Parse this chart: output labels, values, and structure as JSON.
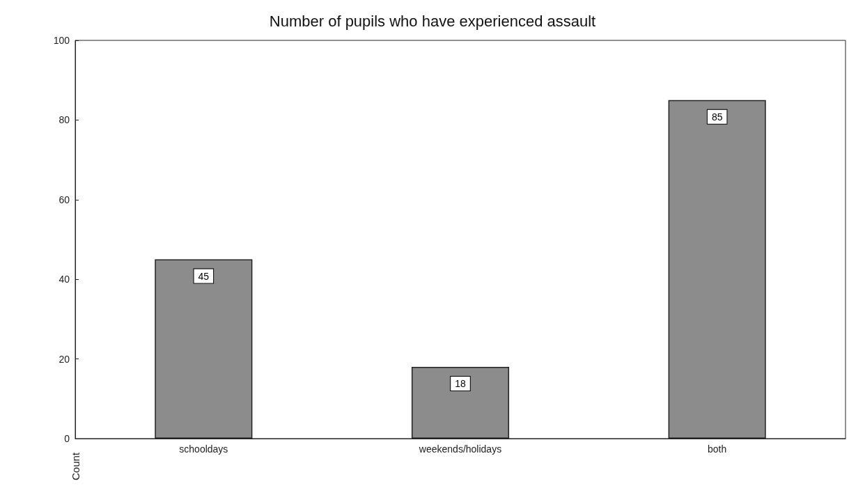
{
  "chart_data": {
    "type": "bar",
    "title": "Number of pupils who have experienced assault",
    "ylabel": "Count",
    "categories": [
      "schooldays",
      "weekends/holidays",
      "both"
    ],
    "values": [
      45,
      18,
      85
    ],
    "color": "#8c8c8c",
    "ylim": [
      0,
      100
    ],
    "yticks": [
      0,
      20,
      40,
      60,
      80,
      100
    ],
    "grid": false,
    "data_labels": true
  }
}
